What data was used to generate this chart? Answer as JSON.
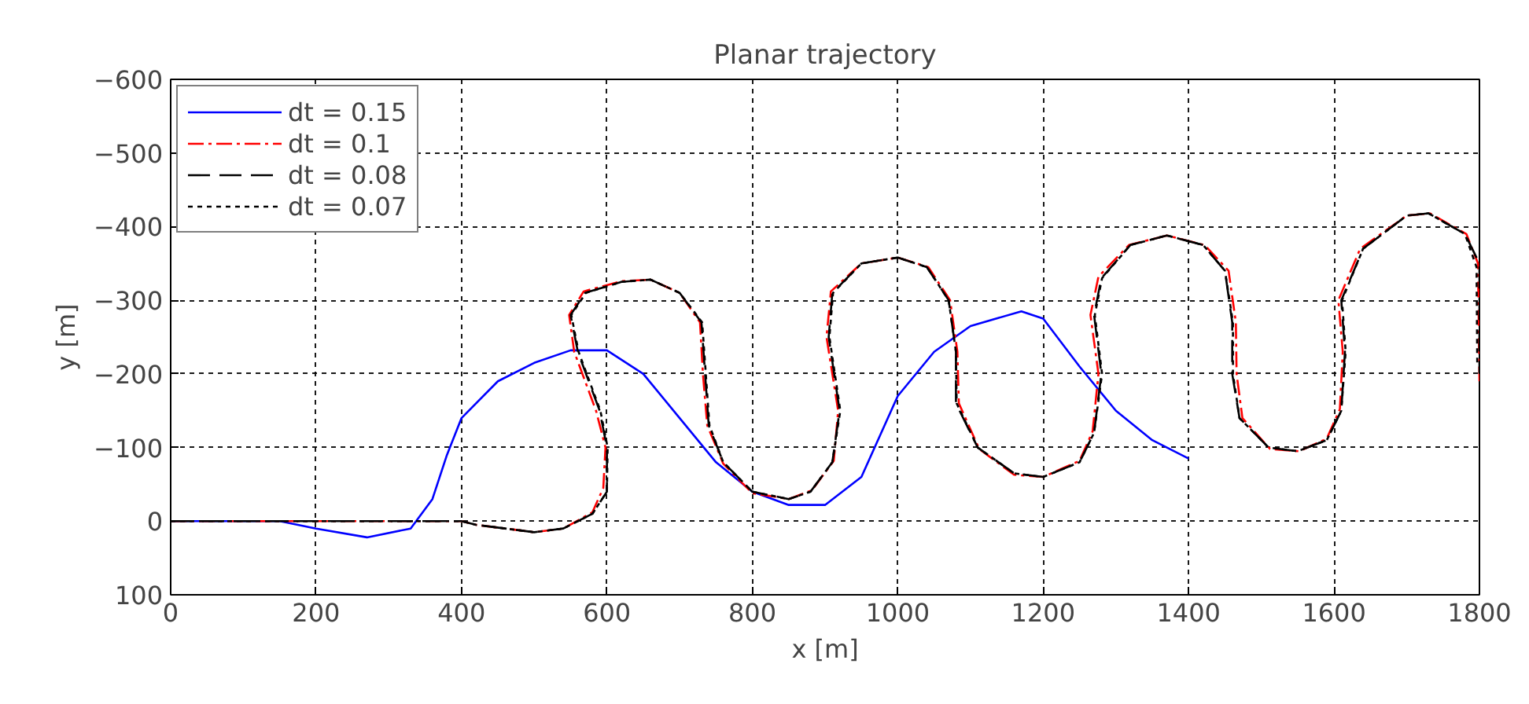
{
  "chart_data": {
    "type": "line",
    "title": "Planar trajectory",
    "xlabel": "x [m]",
    "ylabel": "y [m]",
    "xlim": [
      0,
      1800
    ],
    "xticks": [
      0,
      200,
      400,
      600,
      800,
      1000,
      1200,
      1400,
      1600,
      1800
    ],
    "ylim": [
      100,
      -600
    ],
    "yticks": [
      100,
      0,
      -100,
      -200,
      -300,
      -400,
      -500,
      -600
    ],
    "grid": true,
    "legend": "top left",
    "marker": "none",
    "series": [
      {
        "name": "dt = 0.15",
        "color": "#0000ff",
        "line_style": "solid",
        "x": [
          0,
          150,
          200,
          270,
          330,
          360,
          380,
          400,
          450,
          500,
          550,
          600,
          650,
          700,
          750,
          800,
          850,
          900,
          950,
          1000,
          1050,
          1100,
          1170,
          1200,
          1250,
          1300,
          1350,
          1400
        ],
        "values": [
          0,
          0,
          10,
          22,
          10,
          -30,
          -90,
          -140,
          -190,
          -215,
          -232,
          -232,
          -200,
          -140,
          -80,
          -40,
          -22,
          -22,
          -60,
          -170,
          -230,
          -265,
          -285,
          -275,
          -210,
          -150,
          -110,
          -85
        ]
      },
      {
        "name": "dt = 0.1",
        "color": "#ff0000",
        "line_style": "dashdot",
        "x": [
          0,
          400,
          420,
          500,
          540,
          580,
          595,
          598,
          585,
          555,
          548,
          568,
          620,
          660,
          700,
          728,
          732,
          738,
          760,
          800,
          850,
          882,
          912,
          918,
          902,
          908,
          950,
          1000,
          1042,
          1072,
          1082,
          1084,
          1112,
          1160,
          1200,
          1250,
          1268,
          1276,
          1265,
          1276,
          1318,
          1370,
          1422,
          1455,
          1465,
          1466,
          1474,
          1512,
          1552,
          1590,
          1608,
          1612,
          1606,
          1636,
          1700,
          1732,
          1782,
          1798,
          1800
        ],
        "values": [
          0,
          0,
          5,
          15,
          10,
          -12,
          -45,
          -100,
          -150,
          -230,
          -280,
          -312,
          -326,
          -328,
          -310,
          -270,
          -200,
          -130,
          -78,
          -38,
          -30,
          -42,
          -82,
          -150,
          -250,
          -312,
          -350,
          -358,
          -345,
          -300,
          -230,
          -160,
          -98,
          -63,
          -60,
          -82,
          -122,
          -200,
          -280,
          -332,
          -375,
          -388,
          -375,
          -340,
          -270,
          -200,
          -140,
          -98,
          -95,
          -112,
          -152,
          -230,
          -300,
          -370,
          -415,
          -418,
          -390,
          -350,
          -190
        ]
      },
      {
        "name": "dt = 0.08",
        "color": "#000000",
        "line_style": "dashed",
        "x": [
          0,
          400,
          420,
          500,
          540,
          580,
          600,
          600,
          590,
          560,
          550,
          570,
          620,
          660,
          700,
          730,
          735,
          740,
          760,
          800,
          850,
          880,
          910,
          920,
          905,
          910,
          950,
          1000,
          1040,
          1070,
          1080,
          1080,
          1110,
          1160,
          1200,
          1250,
          1270,
          1280,
          1270,
          1280,
          1320,
          1370,
          1420,
          1450,
          1460,
          1460,
          1470,
          1510,
          1550,
          1590,
          1610,
          1615,
          1610,
          1640,
          1700,
          1730,
          1780,
          1800,
          1800
        ],
        "values": [
          0,
          0,
          5,
          15,
          10,
          -10,
          -40,
          -100,
          -150,
          -230,
          -280,
          -310,
          -325,
          -328,
          -310,
          -270,
          -200,
          -130,
          -80,
          -40,
          -30,
          -40,
          -80,
          -150,
          -250,
          -310,
          -350,
          -358,
          -345,
          -300,
          -230,
          -160,
          -100,
          -65,
          -60,
          -80,
          -120,
          -200,
          -280,
          -330,
          -375,
          -388,
          -375,
          -340,
          -270,
          -200,
          -140,
          -100,
          -95,
          -110,
          -150,
          -230,
          -300,
          -370,
          -415,
          -418,
          -390,
          -350,
          -200
        ]
      },
      {
        "name": "dt = 0.07",
        "color": "#000000",
        "line_style": "dotted",
        "x": [
          0,
          400,
          420,
          500,
          540,
          580,
          600,
          601,
          591,
          561,
          551,
          571,
          620,
          660,
          700,
          731,
          736,
          741,
          760,
          800,
          850,
          880,
          910,
          921,
          906,
          911,
          950,
          1000,
          1040,
          1070,
          1080,
          1081,
          1110,
          1160,
          1200,
          1250,
          1270,
          1281,
          1271,
          1281,
          1320,
          1370,
          1420,
          1450,
          1461,
          1461,
          1470,
          1510,
          1550,
          1590,
          1610,
          1616,
          1611,
          1640,
          1700,
          1730,
          1780,
          1796,
          1797
        ],
        "values": [
          0,
          0,
          5,
          15,
          10,
          -10,
          -40,
          -100,
          -150,
          -230,
          -280,
          -310,
          -325,
          -328,
          -310,
          -270,
          -200,
          -130,
          -80,
          -40,
          -30,
          -40,
          -80,
          -150,
          -250,
          -310,
          -350,
          -358,
          -345,
          -300,
          -230,
          -160,
          -100,
          -65,
          -60,
          -80,
          -120,
          -200,
          -280,
          -330,
          -375,
          -388,
          -375,
          -340,
          -270,
          -200,
          -140,
          -100,
          -95,
          -110,
          -150,
          -230,
          -300,
          -370,
          -415,
          -418,
          -390,
          -345,
          -210
        ]
      }
    ]
  }
}
